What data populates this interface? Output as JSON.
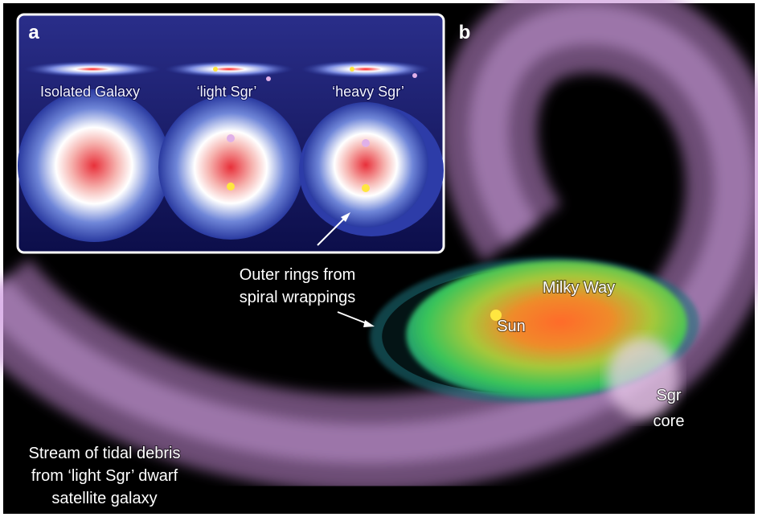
{
  "panels": {
    "a": "a",
    "b": "b"
  },
  "inset": {
    "labels": [
      "Isolated Galaxy",
      "‘light Sgr’",
      "‘heavy Sgr’"
    ]
  },
  "annotations": {
    "outer_rings": [
      "Outer rings from",
      "spiral wrappings"
    ],
    "milky_way": "Milky Way",
    "sun": "Sun",
    "sgr_core": [
      "Sgr",
      "core"
    ],
    "stream": [
      "Stream of tidal debris",
      "from ‘light Sgr’ dwarf",
      "satellite galaxy"
    ]
  }
}
